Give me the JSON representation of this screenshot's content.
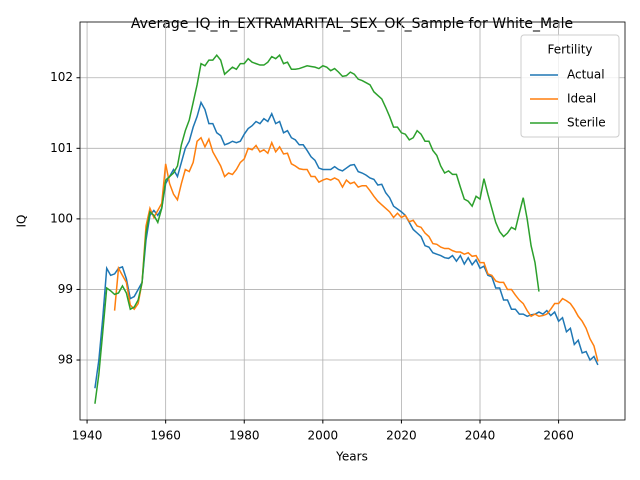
{
  "chart_data": {
    "type": "line",
    "title": "Average_IQ_in_EXTRAMARITAL_SEX_OK_Sample for White_Male",
    "xlabel": "Years",
    "ylabel": "IQ",
    "legend_title": "Fertility",
    "legend": "upper right",
    "grid": true,
    "xlim": [
      1938.2,
      2076.9
    ],
    "ylim": [
      97.15,
      102.79
    ],
    "xticks": [
      1940,
      1960,
      1980,
      2000,
      2020,
      2040,
      2060
    ],
    "yticks": [
      98,
      99,
      100,
      101,
      102
    ],
    "x": [
      1942,
      1943,
      1944,
      1945,
      1946,
      1947,
      1948,
      1949,
      1950,
      1951,
      1952,
      1953,
      1954,
      1955,
      1956,
      1957,
      1958,
      1959,
      1960,
      1961,
      1962,
      1963,
      1964,
      1965,
      1966,
      1967,
      1968,
      1969,
      1970,
      1971,
      1972,
      1973,
      1974,
      1975,
      1976,
      1977,
      1978,
      1979,
      1980,
      1981,
      1982,
      1983,
      1984,
      1985,
      1986,
      1987,
      1988,
      1989,
      1990,
      1991,
      1992,
      1993,
      1994,
      1995,
      1996,
      1997,
      1998,
      1999,
      2000,
      2001,
      2002,
      2003,
      2004,
      2005,
      2006,
      2007,
      2008,
      2009,
      2010,
      2011,
      2012,
      2013,
      2014,
      2015,
      2016,
      2017,
      2018,
      2019,
      2020,
      2021,
      2022,
      2023,
      2024,
      2025,
      2026,
      2027,
      2028,
      2029,
      2030,
      2031,
      2032,
      2033,
      2034,
      2035,
      2036,
      2037,
      2038,
      2039,
      2040,
      2041,
      2042,
      2043,
      2044,
      2045,
      2046,
      2047,
      2048,
      2049,
      2050,
      2051,
      2052,
      2053,
      2054,
      2055,
      2056,
      2057,
      2058,
      2059,
      2060,
      2061,
      2062,
      2063,
      2064,
      2065,
      2066,
      2067,
      2068,
      2069,
      2070
    ],
    "series": [
      {
        "name": "Actual",
        "color": "#1f77b4",
        "values": [
          97.6,
          98.0,
          98.6,
          99.3,
          99.2,
          99.22,
          99.3,
          99.32,
          99.15,
          98.87,
          98.9,
          99.0,
          99.1,
          99.7,
          100.05,
          100.12,
          100.05,
          100.15,
          100.5,
          100.6,
          100.7,
          100.6,
          100.8,
          101.0,
          101.1,
          101.3,
          101.45,
          101.65,
          101.55,
          101.35,
          101.35,
          101.22,
          101.18,
          101.05,
          101.07,
          101.1,
          101.08,
          101.1,
          101.2,
          101.28,
          101.32,
          101.38,
          101.35,
          101.42,
          101.38,
          101.49,
          101.35,
          101.38,
          101.22,
          101.25,
          101.15,
          101.12,
          101.05,
          101.05,
          100.97,
          100.88,
          100.83,
          100.72,
          100.7,
          100.7,
          100.7,
          100.74,
          100.7,
          100.68,
          100.72,
          100.76,
          100.77,
          100.67,
          100.65,
          100.62,
          100.58,
          100.56,
          100.48,
          100.49,
          100.37,
          100.3,
          100.18,
          100.14,
          100.1,
          100.05,
          99.95,
          99.85,
          99.8,
          99.75,
          99.62,
          99.6,
          99.52,
          99.5,
          99.48,
          99.45,
          99.44,
          99.48,
          99.4,
          99.48,
          99.36,
          99.45,
          99.35,
          99.42,
          99.3,
          99.33,
          99.2,
          99.18,
          99.02,
          99.02,
          98.85,
          98.85,
          98.72,
          98.72,
          98.65,
          98.65,
          98.62,
          98.64,
          98.65,
          98.68,
          98.65,
          98.7,
          98.63,
          98.68,
          98.55,
          98.6,
          98.4,
          98.45,
          98.22,
          98.28,
          98.1,
          98.12,
          98.0,
          98.05,
          97.93
        ]
      },
      {
        "name": "Ideal",
        "color": "#ff7f0e",
        "values": [
          null,
          null,
          null,
          null,
          null,
          98.7,
          99.3,
          99.2,
          99.1,
          98.78,
          98.72,
          98.8,
          99.1,
          99.9,
          100.15,
          100.02,
          100.12,
          100.22,
          100.78,
          100.5,
          100.35,
          100.27,
          100.5,
          100.7,
          100.67,
          100.8,
          101.1,
          101.15,
          101.02,
          101.13,
          100.95,
          100.85,
          100.75,
          100.6,
          100.65,
          100.63,
          100.7,
          100.8,
          100.85,
          101.0,
          100.98,
          101.04,
          100.95,
          100.98,
          100.93,
          101.08,
          100.95,
          101.02,
          100.92,
          100.93,
          100.78,
          100.75,
          100.71,
          100.7,
          100.7,
          100.6,
          100.6,
          100.52,
          100.55,
          100.57,
          100.55,
          100.58,
          100.55,
          100.45,
          100.55,
          100.5,
          100.52,
          100.45,
          100.47,
          100.47,
          100.4,
          100.32,
          100.25,
          100.2,
          100.15,
          100.1,
          100.02,
          100.08,
          100.02,
          100.05,
          99.96,
          99.98,
          99.9,
          99.88,
          99.8,
          99.75,
          99.65,
          99.64,
          99.6,
          99.58,
          99.58,
          99.55,
          99.53,
          99.53,
          99.5,
          99.52,
          99.47,
          99.48,
          99.38,
          99.38,
          99.22,
          99.2,
          99.12,
          99.1,
          99.1,
          99.0,
          99.0,
          98.92,
          98.85,
          98.8,
          98.7,
          98.62,
          98.65,
          98.62,
          98.63,
          98.65,
          98.72,
          98.8,
          98.8,
          98.87,
          98.84,
          98.8,
          98.72,
          98.62,
          98.55,
          98.45,
          98.3,
          98.2,
          97.98
        ]
      },
      {
        "name": "Sterile",
        "color": "#2ca02c",
        "values": [
          97.38,
          97.8,
          98.4,
          99.02,
          98.98,
          98.93,
          98.95,
          99.05,
          98.95,
          98.72,
          98.75,
          98.85,
          99.1,
          99.8,
          100.1,
          100.05,
          99.95,
          100.15,
          100.55,
          100.6,
          100.65,
          100.75,
          101.05,
          101.25,
          101.4,
          101.65,
          101.9,
          102.2,
          102.17,
          102.25,
          102.25,
          102.32,
          102.25,
          102.05,
          102.1,
          102.15,
          102.12,
          102.2,
          102.2,
          102.27,
          102.22,
          102.2,
          102.18,
          102.18,
          102.22,
          102.3,
          102.27,
          102.32,
          102.2,
          102.22,
          102.12,
          102.12,
          102.13,
          102.15,
          102.17,
          102.16,
          102.15,
          102.13,
          102.17,
          102.15,
          102.1,
          102.13,
          102.08,
          102.02,
          102.03,
          102.08,
          102.05,
          101.98,
          101.96,
          101.93,
          101.9,
          101.8,
          101.75,
          101.7,
          101.58,
          101.45,
          101.3,
          101.3,
          101.22,
          101.2,
          101.12,
          101.15,
          101.25,
          101.2,
          101.1,
          101.1,
          100.97,
          100.9,
          100.75,
          100.65,
          100.68,
          100.63,
          100.63,
          100.45,
          100.28,
          100.25,
          100.18,
          100.32,
          100.28,
          100.57,
          100.35,
          100.15,
          99.95,
          99.82,
          99.75,
          99.8,
          99.88,
          99.85,
          100.08,
          100.3,
          100.0,
          99.62,
          99.38,
          98.97,
          null,
          null,
          null,
          null,
          null,
          null,
          null,
          null,
          null,
          null,
          null,
          null,
          null,
          null,
          null
        ]
      }
    ]
  }
}
